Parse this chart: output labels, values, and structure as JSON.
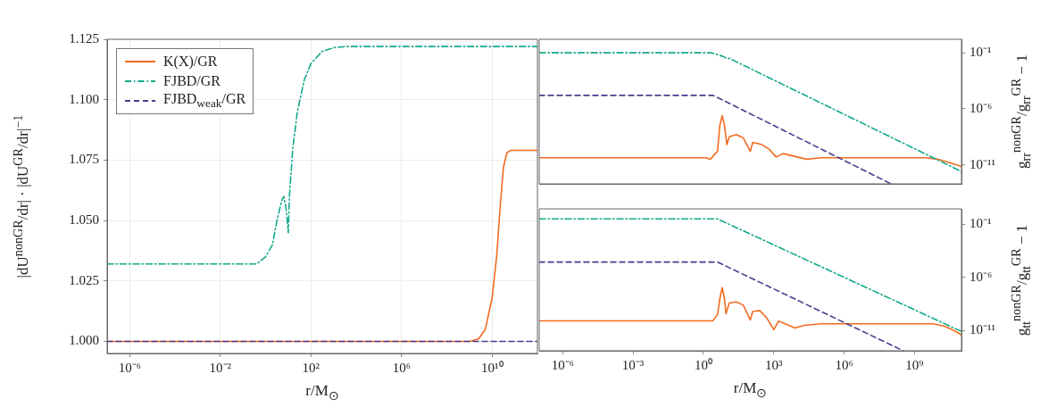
{
  "chart_data": [
    {
      "type": "line",
      "xlabel": "r/M$_{⊙}$",
      "ylabel": "|dU$^{nonGR}$/dr| · |dU$^{GR}$/dr|$^{−1}$",
      "log": "x",
      "grid": true,
      "legend": "top left",
      "xlim": [
        1e-07,
        1000000000000.0
      ],
      "ylim": [
        0.995,
        1.125
      ],
      "xticks": [
        {
          "value": 1e-06,
          "label": "10⁻⁶"
        },
        {
          "value": 0.01,
          "label": "10⁻²"
        },
        {
          "value": 100,
          "label": "10²"
        },
        {
          "value": 1000000.0,
          "label": "10⁶"
        },
        {
          "value": 10000000000.0,
          "label": "10¹⁰"
        }
      ],
      "yticks": [
        {
          "value": 1,
          "label": "1.000"
        },
        1.025,
        {
          "value": 1.05,
          "label": "1.050"
        },
        1.075,
        {
          "value": 1.1,
          "label": "1.100"
        },
        1.125
      ],
      "series": [
        {
          "name": "K(X)/GR",
          "color": "#f26b21",
          "line_style": "solid",
          "x": [
            1e-07,
            1000000000.0,
            2510000000.0,
            5000000000.0,
            10000000000.0,
            15800000000.0,
            22400000000.0,
            31600000000.0,
            44700000000.0,
            63100000000.0,
            1000000000000.0
          ],
          "values": [
            1.0,
            1.0,
            1.001,
            1.005,
            1.018,
            1.035,
            1.055,
            1.072,
            1.078,
            1.079,
            1.079
          ]
        },
        {
          "name": "FJBD/GR",
          "color": "#13a88a",
          "line_style": "dashdot",
          "x": [
            1e-07,
            0.398,
            1,
            2,
            3.16,
            5,
            6.31,
            7.94,
            10,
            11.2,
            15.8,
            25.1,
            50,
            100,
            316,
            1000,
            3160,
            1000000000000.0
          ],
          "values": [
            1.032,
            1.032,
            1.035,
            1.04,
            1.05,
            1.058,
            1.06,
            1.055,
            1.045,
            1.06,
            1.08,
            1.095,
            1.108,
            1.115,
            1.12,
            1.1215,
            1.122,
            1.122
          ]
        },
        {
          "name": "FJBD$_{weak}$/GR",
          "color": "#4b3c8e",
          "line_style": "dashed",
          "x": [
            1e-07,
            1000000000000.0
          ],
          "values": [
            1.0,
            1.0
          ]
        }
      ]
    },
    {
      "type": "line",
      "ylabel": "g$_{rr}$$^{nonGR}$/g$_{rr}$$^{GR}$ − 1",
      "log": "xy",
      "tick_labels": "y",
      "xlim": [
        1e-07,
        100000000000.0
      ],
      "ylim": [
        2e-13,
        1.6
      ],
      "xticks": [
        {
          "value": 1e-06,
          "label": null
        },
        {
          "value": 0.001,
          "label": null
        },
        {
          "value": 1,
          "label": null
        },
        {
          "value": 1000,
          "label": null
        },
        {
          "value": 1000000.0,
          "label": null
        },
        {
          "value": 1000000000.0,
          "label": null
        }
      ],
      "yticks": [
        {
          "value": 0.1,
          "label": "10⁻¹"
        },
        {
          "value": 1e-06,
          "label": "10⁻⁶"
        },
        {
          "value": 1e-11,
          "label": "10⁻¹¹"
        }
      ],
      "series": [
        {
          "color": "#f26b21",
          "line_style": "solid",
          "x": [
            1e-07,
            1.26,
            2,
            3.16,
            3.98,
            5.01,
            6.31,
            7.94,
            10,
            12.6,
            25.1,
            50.1,
            100,
            126,
            316,
            631,
            1260,
            2510,
            10000.0,
            25100.0,
            100000.0,
            3160000000.0,
            10000000000.0,
            31600000000.0,
            100000000000.0
          ],
          "values": [
            4.27e-11,
            4.27e-11,
            3.16e-11,
            1e-10,
            1.58e-10,
            3.16e-08,
            2.51e-07,
            3.16e-08,
            6.31e-10,
            3.16e-09,
            5.01e-09,
            2.51e-09,
            1.58e-10,
            1e-09,
            6.31e-10,
            2.51e-10,
            5.01e-11,
            1e-10,
            5.01e-11,
            3.16e-11,
            4.27e-11,
            4.27e-11,
            3.16e-11,
            1.58e-11,
            7.08e-12
          ]
        },
        {
          "color": "#13a88a",
          "line_style": "dashdot",
          "x": [
            1e-07,
            2,
            3.16,
            6.31,
            10,
            12.6,
            20,
            100000000000.0
          ],
          "values": [
            0.1,
            0.1,
            0.0794,
            0.0501,
            0.0316,
            0.0316,
            0.02,
            2.51e-12
          ]
        },
        {
          "color": "#4b3c8e",
          "line_style": "dashed",
          "x": [
            1e-07,
            2.51,
            6.31,
            100000000.0
          ],
          "values": [
            1.58e-05,
            1.58e-05,
            6.31e-06,
            2e-13
          ]
        }
      ]
    },
    {
      "type": "line",
      "xlabel": "r/M$_{⊙}$",
      "ylabel": "g$_{tt}$$^{nonGR}$/g$_{tt}$$^{GR}$ − 1",
      "log": "xy",
      "xlim": [
        1e-07,
        100000000000.0
      ],
      "ylim": [
        1.3e-13,
        2.8
      ],
      "xticks": [
        {
          "value": 1e-06,
          "label": "10⁻⁶"
        },
        {
          "value": 0.001,
          "label": "10⁻³"
        },
        {
          "value": 1,
          "label": "10⁰"
        },
        {
          "value": 1000,
          "label": "10³"
        },
        {
          "value": 1000000.0,
          "label": "10⁶"
        },
        {
          "value": 1000000000.0,
          "label": "10⁹"
        }
      ],
      "yticks": [
        {
          "value": 0.1,
          "label": "10⁻¹"
        },
        {
          "value": 1e-06,
          "label": "10⁻⁶"
        },
        {
          "value": 1e-11,
          "label": "10⁻¹¹"
        }
      ],
      "series": [
        {
          "color": "#f26b21",
          "line_style": "solid",
          "x": [
            1e-07,
            2.51,
            3.98,
            5.01,
            6.31,
            7.94,
            9.12,
            12.6,
            25.1,
            50.1,
            100,
            126,
            251,
            501,
            1000,
            1580,
            3980,
            7940,
            20000.0,
            100000.0,
            6310000000.0,
            20000000000.0,
            50100000000.0,
            100000000000.0
          ],
          "values": [
            8.32e-11,
            8.32e-11,
            3.16e-10,
            1e-08,
            1.12e-07,
            1e-08,
            3.98e-10,
            3.98e-09,
            5.01e-09,
            2.51e-09,
            1e-10,
            6.31e-10,
            7.94e-10,
            1.58e-10,
            1.26e-11,
            7.94e-11,
            3.55e-11,
            1.78e-11,
            3.16e-11,
            4.47e-11,
            4.47e-11,
            2.51e-11,
            1e-11,
            3.98e-12
          ]
        },
        {
          "color": "#13a88a",
          "line_style": "dashdot",
          "x": [
            1e-07,
            3.98,
            100000000000.0
          ],
          "values": [
            0.316,
            0.316,
            8.51e-12
          ]
        },
        {
          "color": "#4b3c8e",
          "line_style": "dashed",
          "x": [
            1e-07,
            3.98,
            331000000.0
          ],
          "values": [
            2.82e-05,
            2.82e-05,
            1.3e-13
          ]
        }
      ]
    }
  ]
}
